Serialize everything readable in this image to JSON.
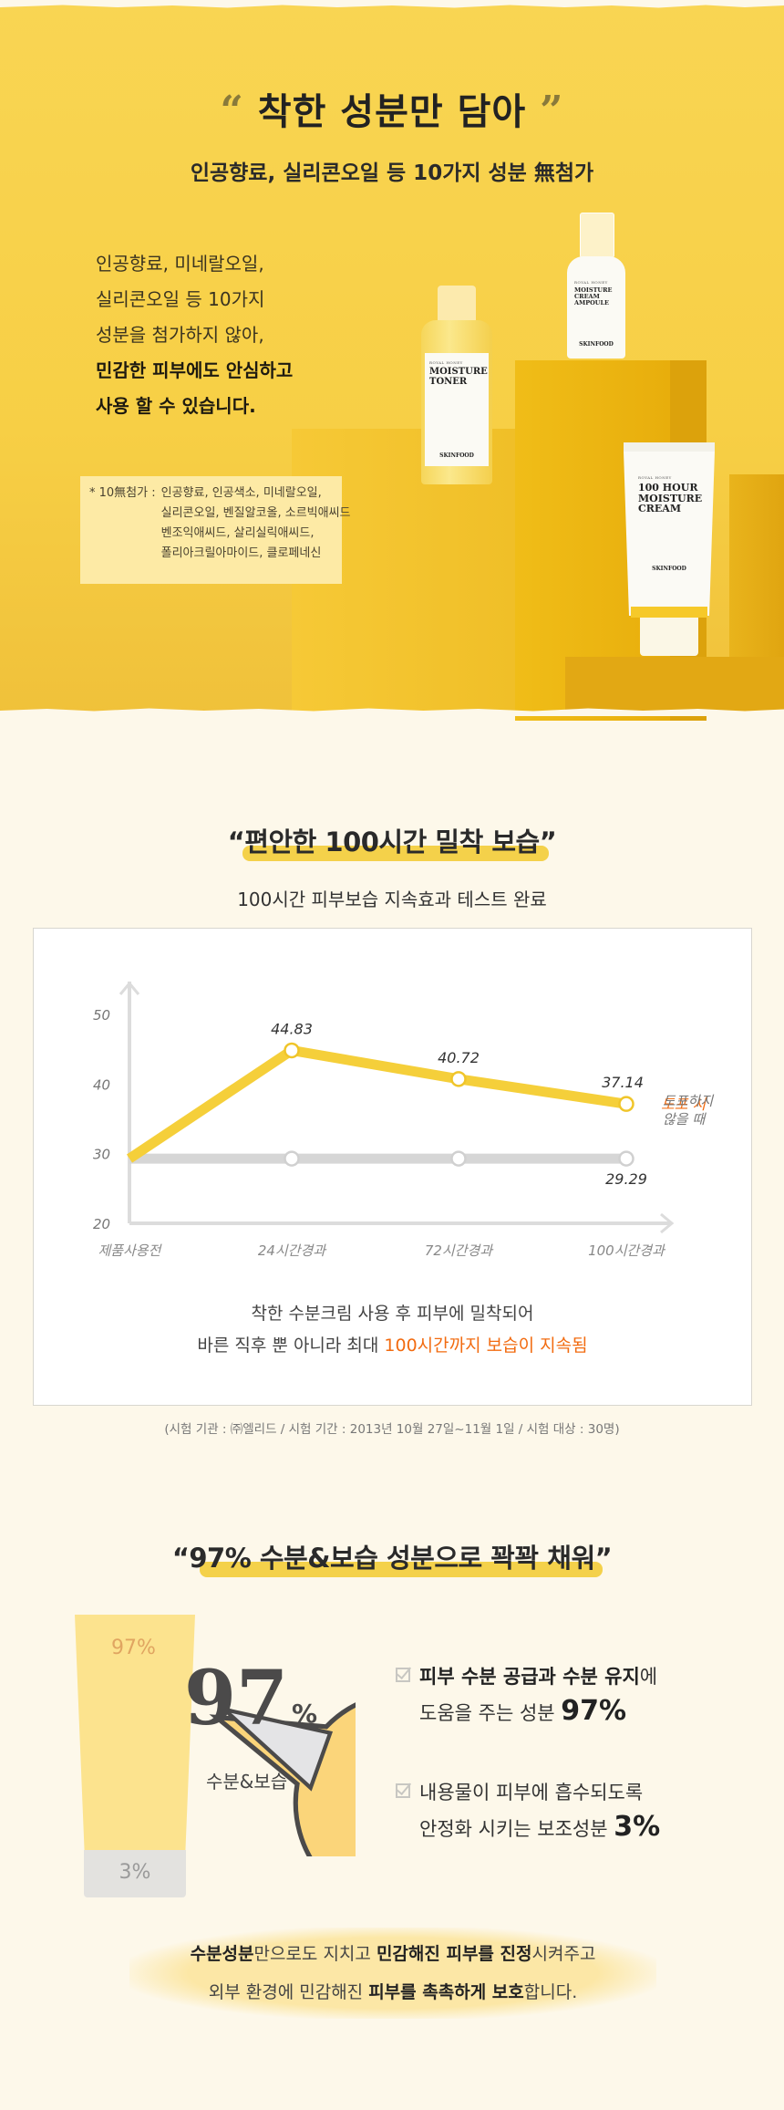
{
  "hero": {
    "title_open_quote": "“",
    "title": "착한 성분만 담아",
    "title_close_quote": "”",
    "subtitle": "인공향료, 실리콘오일 등 10가지 성분 無첨가",
    "body_lines": [
      "인공향료, 미네랄오일,",
      "실리콘오일 등 10가지",
      "성분을 첨가하지 않아,"
    ],
    "body_bold_lines": [
      "민감한 피부에도 안심하고",
      "사용 할 수 있습니다."
    ],
    "note": {
      "key": "* 10無첨가 :",
      "lines": [
        "인공향료, 인공색소, 미네랄오일,",
        "실리콘오일, 벤질알코올, 소르빅애씨드",
        "벤조익애씨드, 살리실릭애씨드,",
        "폴리아크릴아마이드, 클로페네신"
      ]
    },
    "products": {
      "toner": {
        "line": "ROYAL HONEY",
        "name": "MOISTURE TONER",
        "brand": "SKINFOOD"
      },
      "ampoule": {
        "line": "ROYAL HONEY",
        "name": "MOISTURE CREAM AMPOULE",
        "brand": "SKINFOOD"
      },
      "cream": {
        "line": "ROYAL HONEY",
        "name": "100 HOUR MOISTURE CREAM",
        "brand": "SKINFOOD"
      }
    }
  },
  "section2": {
    "title": "“편안한 100시간 밀착 보습”",
    "subtitle": "100시간 피부보습 지속효과 테스트 완료",
    "caption_line1": "착한 수분크림 사용 후 피부에 밀착되어",
    "caption_line2_prefix": "바른 직후 뿐 아니라 최대 ",
    "caption_line2_highlight": "100시간까지 보습이 지속됨",
    "highlight_color": "#f26b10",
    "test_info": "(시험 기관 : ㈜엘리드 / 시험 기간 : 2013년 10월 27일~11월 1일 / 시험 대상 : 30명)"
  },
  "chart_data": {
    "type": "line",
    "title": "100시간 피부보습 지속효과 테스트",
    "xlabel": "",
    "ylabel": "",
    "categories": [
      "제품사용전",
      "24시간경과",
      "72시간경과",
      "100시간경과"
    ],
    "yticks": [
      20,
      30,
      40,
      50
    ],
    "ylim": [
      20,
      50
    ],
    "grid": false,
    "series": [
      {
        "name": "도포 시",
        "color": "#f5cf3a",
        "label_color": "#f26b10",
        "values": [
          29.29,
          44.83,
          40.72,
          37.14
        ],
        "labels": [
          "",
          "44.83",
          "40.72",
          "37.14"
        ]
      },
      {
        "name": "도포하지 않을 때",
        "color": "#d6d6d6",
        "label_color": "#777777",
        "values": [
          29.29,
          29.29,
          29.29,
          29.29
        ],
        "labels": [
          "",
          "",
          "",
          "29.29"
        ]
      }
    ],
    "legend_position": "right"
  },
  "section3": {
    "title": "“97% 수분&보습 성분으로 꽉꽉 채워”",
    "tube_top_label": "97%",
    "tube_bottom_label": "3%",
    "pie_big": "97",
    "pie_pct": "%",
    "pie_label": "수분&보습",
    "items": [
      {
        "bold": "피부 수분 공급과 수분 유지",
        "rest1": "에",
        "line2": "도움을 주는 성분 ",
        "pct": "97%"
      },
      {
        "bold": "",
        "rest1": "내용물이 피부에 흡수되도록",
        "line2": "안정화 시키는 보조성분 ",
        "pct": "3%"
      }
    ],
    "summary": {
      "l1": [
        {
          "t": "수분성분",
          "b": true
        },
        {
          "t": "만으로도 지치고 ",
          "b": false
        },
        {
          "t": "민감해진 피부를 진정",
          "b": true
        },
        {
          "t": "시켜주고",
          "b": false
        }
      ],
      "l2": [
        {
          "t": "외부 환경에 민감해진 ",
          "b": false
        },
        {
          "t": "피부를 촉촉하게 보호",
          "b": true
        },
        {
          "t": "합니다.",
          "b": false
        }
      ]
    }
  }
}
